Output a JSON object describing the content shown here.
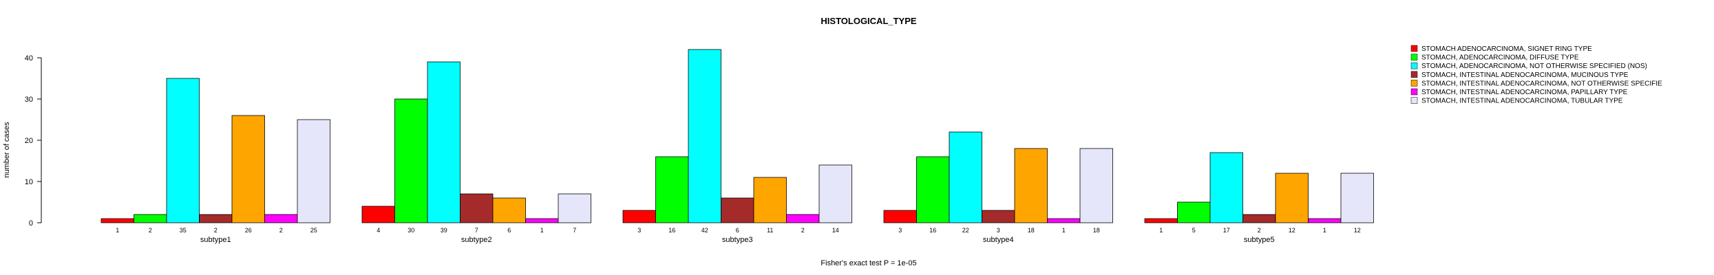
{
  "chart_data": {
    "type": "bar",
    "title": "HISTOLOGICAL_TYPE",
    "ylabel": "number of cases",
    "footnote": "Fisher's exact test P = 1e-05",
    "ylim": [
      0,
      42
    ],
    "yticks": [
      0,
      10,
      20,
      30,
      40
    ],
    "groups": [
      "subtype1",
      "subtype2",
      "subtype3",
      "subtype4",
      "subtype5"
    ],
    "series": [
      {
        "name": "STOMACH ADENOCARCINOMA, SIGNET RING TYPE",
        "color": "#ff0000",
        "values": [
          1,
          4,
          3,
          3,
          1
        ]
      },
      {
        "name": "STOMACH, ADENOCARCINOMA, DIFFUSE TYPE",
        "color": "#00ff00",
        "values": [
          2,
          30,
          16,
          16,
          5
        ]
      },
      {
        "name": "STOMACH, ADENOCARCINOMA, NOT OTHERWISE SPECIFIED (NOS)",
        "color": "#00ffff",
        "values": [
          35,
          39,
          42,
          22,
          17
        ]
      },
      {
        "name": "STOMACH, INTESTINAL ADENOCARCINOMA, MUCINOUS TYPE",
        "color": "#a52a2a",
        "values": [
          2,
          7,
          6,
          3,
          2
        ]
      },
      {
        "name": "STOMACH, INTESTINAL ADENOCARCINOMA, NOT OTHERWISE SPECIFIE",
        "color": "#ffa500",
        "values": [
          26,
          6,
          11,
          18,
          12
        ]
      },
      {
        "name": "STOMACH, INTESTINAL ADENOCARCINOMA, PAPILLARY TYPE",
        "color": "#ff00ff",
        "values": [
          2,
          1,
          2,
          1,
          1
        ]
      },
      {
        "name": "STOMACH, INTESTINAL ADENOCARCINOMA, TUBULAR TYPE",
        "color": "#e6e6fa",
        "values": [
          25,
          7,
          14,
          18,
          12
        ]
      }
    ],
    "legend_position": "top-right",
    "grid": false
  }
}
